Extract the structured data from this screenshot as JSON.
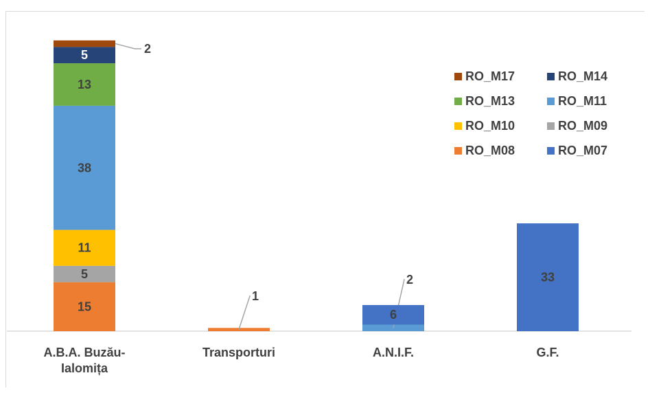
{
  "chart_data": {
    "type": "bar",
    "stacked": true,
    "title": "",
    "xlabel": "",
    "ylabel": "",
    "grid": false,
    "legend_position": "right",
    "categories": [
      "A.B.A. Buzău-\nIalomița",
      "Transporturi",
      "A.N.I.F.",
      "G.F."
    ],
    "series": [
      {
        "name": "RO_M08",
        "color": "#ED7D31",
        "values": [
          15,
          1,
          0,
          0
        ]
      },
      {
        "name": "RO_M09",
        "color": "#A5A5A5",
        "values": [
          5,
          0,
          0,
          0
        ]
      },
      {
        "name": "RO_M10",
        "color": "#FFC000",
        "values": [
          11,
          0,
          0,
          0
        ]
      },
      {
        "name": "RO_M11",
        "color": "#5B9BD5",
        "values": [
          38,
          0,
          2,
          0
        ]
      },
      {
        "name": "RO_M13",
        "color": "#70AD47",
        "values": [
          13,
          0,
          0,
          0
        ]
      },
      {
        "name": "RO_M14",
        "color": "#264478",
        "values": [
          5,
          0,
          0,
          0
        ]
      },
      {
        "name": "RO_M17",
        "color": "#9E480E",
        "values": [
          2,
          0,
          0,
          0
        ]
      },
      {
        "name": "RO_M07",
        "color": "#4472C4",
        "values": [
          0,
          0,
          6,
          33
        ]
      }
    ],
    "legend_order": [
      "RO_M17",
      "RO_M14",
      "RO_M13",
      "RO_M11",
      "RO_M10",
      "RO_M09",
      "RO_M08",
      "RO_M07"
    ],
    "data_label_colors": {
      "light": "#ffffff",
      "dark": "#404040"
    }
  }
}
